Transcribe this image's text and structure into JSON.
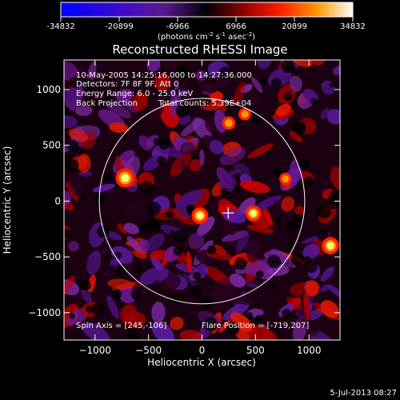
{
  "colorbar": {
    "ticks": [
      "-34832",
      "-20899",
      "-6966",
      "6966",
      "20899",
      "34832"
    ],
    "tick_values": [
      -34832,
      -20899,
      -6966,
      6966,
      20899,
      34832
    ],
    "range": [
      -34832,
      34832
    ],
    "unit_prefix": "(photons cm",
    "unit_exp1": "-2",
    "unit_mid": " s",
    "unit_exp2": "-1",
    "unit_mid2": " asec",
    "unit_exp3": "-2",
    "unit_suffix": ")"
  },
  "info": {
    "line1": "10-May-2005 14:25:16.000 to 14:27:36.000",
    "line2": "Detectors: 7F 8F 9F, Att 0",
    "line3": "Energy Range: 6.0 - 25.0 keV",
    "line4a": "Back Projection",
    "line4b": "Total counts: 5.39E+04",
    "spin_axis": "Spin Axis = [245,-106]",
    "flare_position": "Flare Position = [-719,207]"
  },
  "footer": {
    "date": "5-Jul-2013 08:27"
  },
  "chart_data": {
    "type": "heatmap",
    "title": "Reconstructed RHESSI Image",
    "xlabel": "Heliocentric X (arcsec)",
    "ylabel": "Heliocentric Y (arcsec)",
    "xlim": [
      -1290,
      1290
    ],
    "ylim": [
      -1245,
      1265
    ],
    "xticks": [
      -1000,
      -500,
      0,
      500,
      1000
    ],
    "yticks": [
      -1000,
      -500,
      0,
      500,
      1000
    ],
    "xtick_labels": [
      "−1000",
      "−500",
      "0",
      "500",
      "1000"
    ],
    "ytick_labels": [
      "−1000",
      "−500",
      "0",
      "500",
      "1000"
    ],
    "solar_disk": {
      "center": [
        0,
        0
      ],
      "radius": 960
    },
    "crosshair": [
      245,
      -106
    ],
    "sources": [
      {
        "x": -719,
        "y": 207,
        "intensity": 34832
      },
      {
        "x": -20,
        "y": -130,
        "intensity": 26000
      },
      {
        "x": 480,
        "y": -110,
        "intensity": 24000
      },
      {
        "x": 1200,
        "y": -400,
        "intensity": 28000
      },
      {
        "x": 250,
        "y": 700,
        "intensity": 14000
      },
      {
        "x": 400,
        "y": 780,
        "intensity": 11000
      },
      {
        "x": 780,
        "y": 200,
        "intensity": 10000
      }
    ],
    "colormap": "RHESSI blue-purple-black-red-yellow-white"
  }
}
